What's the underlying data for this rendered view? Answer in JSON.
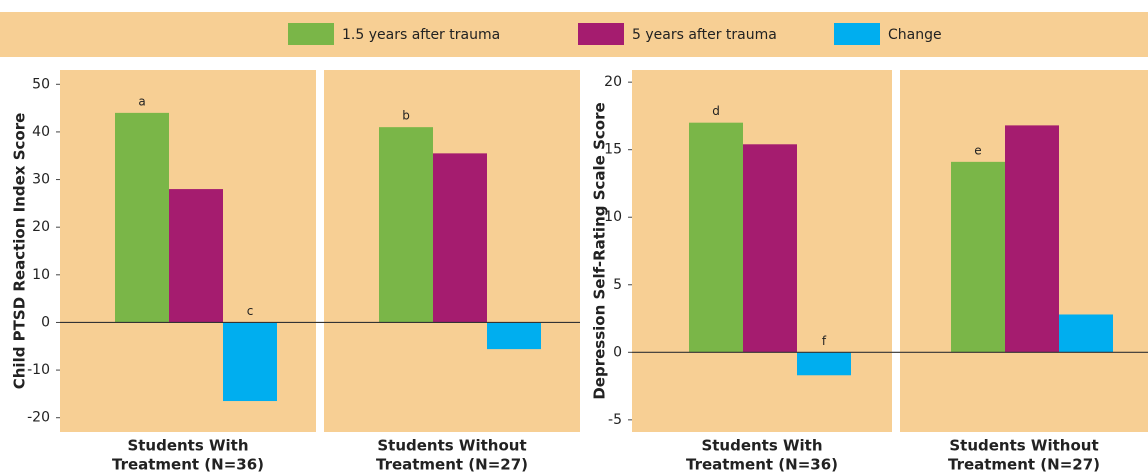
{
  "chart_data": [
    {
      "type": "bar",
      "ylabel": "Child PTSD Reaction Index Score",
      "categories": [
        [
          "Students With",
          "Treatment (N=36)"
        ],
        [
          "Students Without",
          "Treatment (N=27)"
        ]
      ],
      "series": [
        {
          "name": "1.5 years after trauma",
          "color": "#7ab648",
          "values": [
            44,
            41
          ],
          "annotations": [
            "a",
            "b"
          ]
        },
        {
          "name": "5 years after trauma",
          "color": "#a51c6f",
          "values": [
            28,
            35.5
          ]
        },
        {
          "name": "Change",
          "color": "#00aeef",
          "values": [
            -16.5,
            -5.6
          ],
          "annotations": [
            "c",
            null
          ]
        }
      ],
      "ylim": [
        -23,
        53
      ],
      "yticks": [
        -20,
        -10,
        0,
        10,
        20,
        30,
        40,
        50
      ],
      "background": "#f7cf94"
    },
    {
      "type": "bar",
      "ylabel": "Depression Self-Rating Scale Score",
      "categories": [
        [
          "Students With",
          "Treatment (N=36)"
        ],
        [
          "Students Without",
          "Treatment (N=27)"
        ]
      ],
      "series": [
        {
          "name": "1.5 years after trauma",
          "color": "#7ab648",
          "values": [
            17,
            14.1
          ],
          "annotations": [
            "d",
            "e"
          ]
        },
        {
          "name": "5 years after trauma",
          "color": "#a51c6f",
          "values": [
            15.4,
            16.8
          ]
        },
        {
          "name": "Change",
          "color": "#00aeef",
          "values": [
            -1.7,
            2.8
          ],
          "annotations": [
            "f",
            null
          ]
        }
      ],
      "ylim": [
        -5.9,
        20.9
      ],
      "yticks": [
        -5,
        0,
        5,
        10,
        15,
        20
      ],
      "background": "#f7cf94"
    }
  ]
}
